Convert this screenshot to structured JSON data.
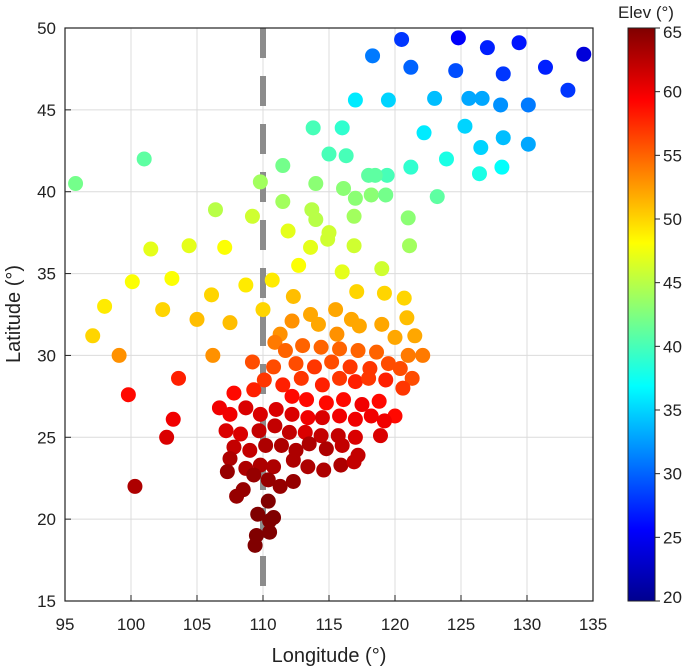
{
  "chart_data": {
    "type": "scatter",
    "title": "",
    "xlabel": "Longitude (°)",
    "ylabel": "Latitude (°)",
    "xlim": [
      95,
      135
    ],
    "ylim": [
      15,
      50
    ],
    "xticks": [
      95,
      100,
      105,
      110,
      115,
      120,
      125,
      130,
      135
    ],
    "yticks": [
      15,
      20,
      25,
      30,
      35,
      40,
      45,
      50
    ],
    "grid": true,
    "reference_line": {
      "orientation": "vertical",
      "x": 110,
      "style": "dashed",
      "color": "#8c8c8c"
    },
    "colorbar": {
      "title": "Elev (°)",
      "range": [
        20,
        65
      ],
      "ticks": [
        20,
        25,
        30,
        35,
        40,
        45,
        50,
        55,
        60,
        65
      ],
      "colormap": "jet"
    },
    "color_variable": "Elev (°)",
    "points": [
      [
        124.8,
        49.4,
        25.5
      ],
      [
        120.5,
        49.3,
        28
      ],
      [
        129.4,
        49.1,
        26.5
      ],
      [
        127.0,
        48.8,
        27
      ],
      [
        134.3,
        48.4,
        24
      ],
      [
        118.3,
        48.3,
        31
      ],
      [
        121.2,
        47.6,
        30
      ],
      [
        131.4,
        47.6,
        27
      ],
      [
        124.6,
        47.4,
        29
      ],
      [
        128.2,
        47.2,
        28
      ],
      [
        133.1,
        46.2,
        28
      ],
      [
        117.0,
        45.6,
        36
      ],
      [
        119.5,
        45.6,
        35
      ],
      [
        123.0,
        45.7,
        34
      ],
      [
        125.6,
        45.7,
        33
      ],
      [
        126.6,
        45.7,
        33
      ],
      [
        128.0,
        45.3,
        32
      ],
      [
        130.1,
        45.3,
        31
      ],
      [
        125.3,
        44.0,
        35
      ],
      [
        113.8,
        43.9,
        40
      ],
      [
        116.0,
        43.9,
        39
      ],
      [
        122.2,
        43.6,
        36
      ],
      [
        128.2,
        43.3,
        34
      ],
      [
        126.5,
        42.7,
        35
      ],
      [
        130.1,
        42.9,
        33
      ],
      [
        101.0,
        42.0,
        41
      ],
      [
        115.0,
        42.3,
        40
      ],
      [
        116.3,
        42.2,
        40
      ],
      [
        119.4,
        41.0,
        40
      ],
      [
        121.2,
        41.5,
        39
      ],
      [
        123.9,
        42.0,
        38
      ],
      [
        126.4,
        41.1,
        38
      ],
      [
        128.1,
        41.5,
        37
      ],
      [
        95.8,
        40.5,
        42
      ],
      [
        109.8,
        40.6,
        44
      ],
      [
        111.5,
        41.6,
        42
      ],
      [
        114.0,
        40.5,
        43
      ],
      [
        116.1,
        40.2,
        43
      ],
      [
        118.0,
        41.0,
        41
      ],
      [
        118.5,
        41.0,
        41
      ],
      [
        117.0,
        39.6,
        43
      ],
      [
        118.2,
        39.8,
        43
      ],
      [
        119.3,
        39.8,
        42
      ],
      [
        123.2,
        39.7,
        41
      ],
      [
        106.4,
        38.9,
        45
      ],
      [
        109.2,
        38.5,
        46
      ],
      [
        111.5,
        39.4,
        44
      ],
      [
        113.7,
        38.9,
        45
      ],
      [
        114.0,
        38.3,
        45
      ],
      [
        116.9,
        38.5,
        44
      ],
      [
        121.0,
        38.4,
        43
      ],
      [
        101.5,
        36.5,
        47
      ],
      [
        104.4,
        36.7,
        47
      ],
      [
        107.1,
        36.6,
        48
      ],
      [
        111.9,
        37.6,
        47
      ],
      [
        115.0,
        37.5,
        46
      ],
      [
        114.9,
        37.1,
        46
      ],
      [
        113.6,
        36.6,
        47
      ],
      [
        116.9,
        36.7,
        46
      ],
      [
        121.1,
        36.7,
        44
      ],
      [
        100.1,
        34.5,
        48
      ],
      [
        103.1,
        34.7,
        48
      ],
      [
        108.7,
        34.3,
        49
      ],
      [
        110.7,
        34.6,
        49
      ],
      [
        112.7,
        35.5,
        48
      ],
      [
        116.0,
        35.1,
        47
      ],
      [
        119.0,
        35.3,
        46
      ],
      [
        98.0,
        33.0,
        49
      ],
      [
        102.4,
        32.8,
        50
      ],
      [
        105.0,
        32.2,
        51
      ],
      [
        106.1,
        33.7,
        50
      ],
      [
        107.5,
        32.0,
        51
      ],
      [
        110.0,
        32.8,
        50
      ],
      [
        112.3,
        33.6,
        51
      ],
      [
        113.6,
        32.5,
        52
      ],
      [
        115.5,
        32.8,
        52
      ],
      [
        117.1,
        33.9,
        50
      ],
      [
        119.2,
        33.8,
        50
      ],
      [
        120.7,
        33.5,
        50
      ],
      [
        97.1,
        31.2,
        50
      ],
      [
        106.2,
        30.0,
        53
      ],
      [
        99.1,
        30.0,
        53
      ],
      [
        111.3,
        31.3,
        53
      ],
      [
        112.2,
        32.1,
        53
      ],
      [
        114.2,
        31.9,
        52
      ],
      [
        115.6,
        31.3,
        53
      ],
      [
        116.7,
        32.2,
        52
      ],
      [
        117.3,
        31.8,
        52
      ],
      [
        119.0,
        31.9,
        52
      ],
      [
        120.9,
        32.3,
        51
      ],
      [
        120.0,
        31.1,
        52
      ],
      [
        121.5,
        31.2,
        52
      ],
      [
        110.9,
        30.8,
        54
      ],
      [
        111.7,
        30.3,
        55
      ],
      [
        113.0,
        30.6,
        55
      ],
      [
        114.4,
        30.5,
        55
      ],
      [
        115.8,
        30.4,
        55
      ],
      [
        117.2,
        30.3,
        55
      ],
      [
        118.6,
        30.2,
        55
      ],
      [
        121.0,
        30.0,
        54
      ],
      [
        122.1,
        30.0,
        54
      ],
      [
        109.2,
        29.6,
        56
      ],
      [
        110.8,
        29.3,
        56
      ],
      [
        112.5,
        29.5,
        56
      ],
      [
        113.9,
        29.3,
        57
      ],
      [
        115.2,
        29.6,
        56
      ],
      [
        116.6,
        29.3,
        57
      ],
      [
        118.1,
        29.2,
        57
      ],
      [
        119.5,
        29.5,
        56
      ],
      [
        120.4,
        29.2,
        56
      ],
      [
        121.3,
        28.6,
        56
      ],
      [
        110.1,
        28.5,
        57
      ],
      [
        111.5,
        28.2,
        58
      ],
      [
        112.9,
        28.6,
        57
      ],
      [
        114.5,
        28.2,
        58
      ],
      [
        115.8,
        28.6,
        57
      ],
      [
        117.0,
        28.4,
        58
      ],
      [
        118.0,
        28.6,
        57
      ],
      [
        119.3,
        28.5,
        58
      ],
      [
        120.6,
        28.0,
        57
      ],
      [
        109.3,
        27.9,
        58
      ],
      [
        107.8,
        27.7,
        59
      ],
      [
        112.2,
        27.5,
        59
      ],
      [
        113.3,
        27.3,
        59
      ],
      [
        114.8,
        27.1,
        59
      ],
      [
        116.1,
        27.3,
        59
      ],
      [
        117.5,
        27.0,
        60
      ],
      [
        118.8,
        27.2,
        59
      ],
      [
        120.0,
        26.3,
        59
      ],
      [
        103.6,
        28.6,
        58
      ],
      [
        106.7,
        26.8,
        60
      ],
      [
        107.5,
        26.4,
        60
      ],
      [
        108.7,
        26.8,
        61
      ],
      [
        109.8,
        26.4,
        61
      ],
      [
        111.0,
        26.7,
        61
      ],
      [
        112.2,
        26.4,
        61
      ],
      [
        113.4,
        26.2,
        60
      ],
      [
        114.5,
        26.2,
        61
      ],
      [
        115.8,
        26.3,
        60
      ],
      [
        117.0,
        26.1,
        60
      ],
      [
        118.2,
        26.3,
        60
      ],
      [
        119.2,
        26.0,
        60
      ],
      [
        103.2,
        26.1,
        60
      ],
      [
        102.7,
        25.0,
        61
      ],
      [
        99.8,
        27.6,
        59
      ],
      [
        107.2,
        25.4,
        61
      ],
      [
        108.3,
        25.2,
        61
      ],
      [
        109.7,
        25.4,
        62
      ],
      [
        110.9,
        25.7,
        62
      ],
      [
        112.0,
        25.3,
        62
      ],
      [
        113.2,
        25.3,
        61
      ],
      [
        114.4,
        25.1,
        62
      ],
      [
        115.7,
        25.1,
        62
      ],
      [
        117.0,
        25.0,
        61
      ],
      [
        118.9,
        25.1,
        61
      ],
      [
        107.8,
        24.4,
        62
      ],
      [
        109.0,
        24.2,
        62
      ],
      [
        110.2,
        24.5,
        63
      ],
      [
        111.4,
        24.5,
        63
      ],
      [
        112.5,
        24.2,
        63
      ],
      [
        113.5,
        24.6,
        63
      ],
      [
        114.8,
        24.3,
        63
      ],
      [
        116.0,
        24.5,
        62
      ],
      [
        117.2,
        23.9,
        62
      ],
      [
        107.5,
        23.7,
        63
      ],
      [
        108.7,
        23.1,
        63
      ],
      [
        109.8,
        23.3,
        63
      ],
      [
        110.8,
        23.2,
        63
      ],
      [
        112.3,
        23.6,
        63
      ],
      [
        113.4,
        23.2,
        63
      ],
      [
        114.6,
        23.0,
        63
      ],
      [
        115.9,
        23.3,
        63
      ],
      [
        116.9,
        23.5,
        62
      ],
      [
        107.3,
        22.9,
        64
      ],
      [
        109.3,
        22.7,
        64
      ],
      [
        110.4,
        22.4,
        64
      ],
      [
        111.3,
        22.0,
        64
      ],
      [
        112.3,
        22.3,
        64
      ],
      [
        100.3,
        22.0,
        63
      ],
      [
        108.5,
        21.8,
        64
      ],
      [
        108.0,
        21.4,
        64
      ],
      [
        110.4,
        21.1,
        65
      ],
      [
        109.6,
        20.3,
        65
      ],
      [
        110.5,
        19.9,
        65
      ],
      [
        110.8,
        20.1,
        65
      ],
      [
        109.5,
        19.0,
        65
      ],
      [
        110.5,
        19.2,
        65
      ],
      [
        109.4,
        18.4,
        65
      ]
    ]
  }
}
